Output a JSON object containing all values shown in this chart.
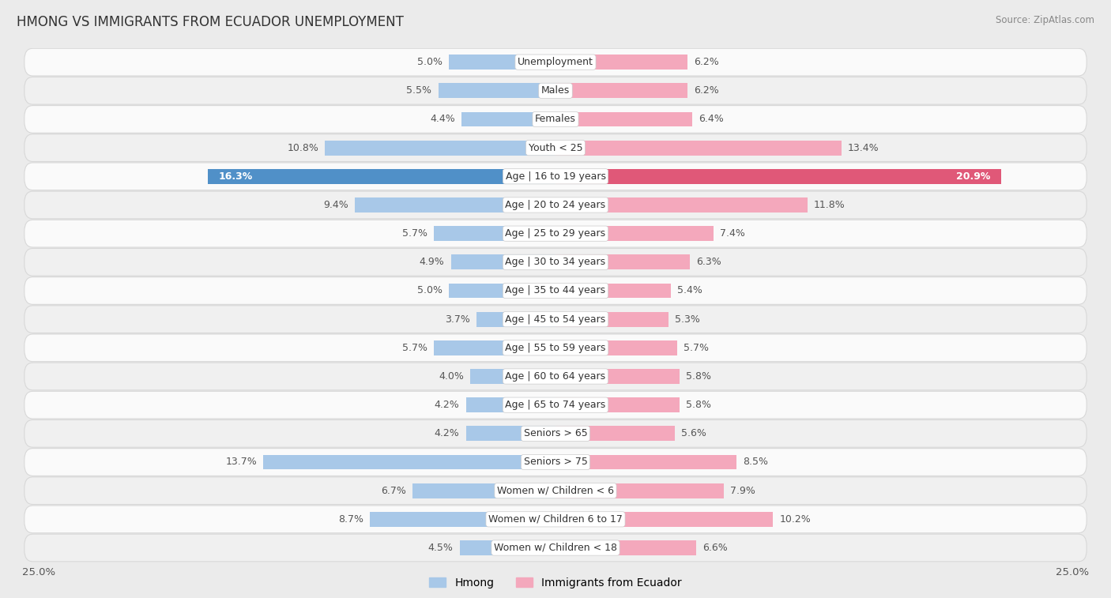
{
  "title": "HMONG VS IMMIGRANTS FROM ECUADOR UNEMPLOYMENT",
  "source": "Source: ZipAtlas.com",
  "categories": [
    "Unemployment",
    "Males",
    "Females",
    "Youth < 25",
    "Age | 16 to 19 years",
    "Age | 20 to 24 years",
    "Age | 25 to 29 years",
    "Age | 30 to 34 years",
    "Age | 35 to 44 years",
    "Age | 45 to 54 years",
    "Age | 55 to 59 years",
    "Age | 60 to 64 years",
    "Age | 65 to 74 years",
    "Seniors > 65",
    "Seniors > 75",
    "Women w/ Children < 6",
    "Women w/ Children 6 to 17",
    "Women w/ Children < 18"
  ],
  "hmong_values": [
    5.0,
    5.5,
    4.4,
    10.8,
    16.3,
    9.4,
    5.7,
    4.9,
    5.0,
    3.7,
    5.7,
    4.0,
    4.2,
    4.2,
    13.7,
    6.7,
    8.7,
    4.5
  ],
  "ecuador_values": [
    6.2,
    6.2,
    6.4,
    13.4,
    20.9,
    11.8,
    7.4,
    6.3,
    5.4,
    5.3,
    5.7,
    5.8,
    5.8,
    5.6,
    8.5,
    7.9,
    10.2,
    6.6
  ],
  "hmong_color": "#a8c8e8",
  "ecuador_color": "#f4a8bc",
  "hmong_color_highlight": "#5090c8",
  "ecuador_color_highlight": "#e05878",
  "highlight_index": 4,
  "axis_max": 25.0,
  "bar_height": 0.52,
  "background_color": "#ebebeb",
  "row_bg_colors": [
    "#fafafa",
    "#f0f0f0"
  ],
  "label_fontsize": 9.0,
  "value_fontsize": 9.0,
  "title_fontsize": 12,
  "legend_fontsize": 10,
  "row_edge_color": "#d8d8d8",
  "center_label_bg": "#f8f8f8",
  "center_label_edge": "#cccccc"
}
